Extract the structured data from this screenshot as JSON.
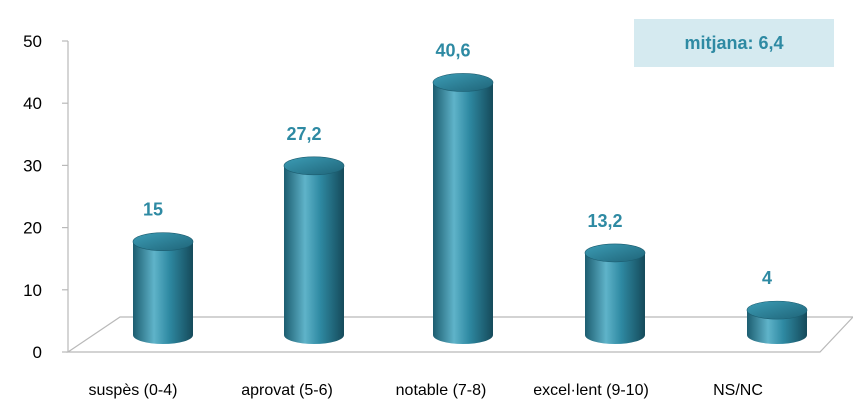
{
  "chart_data": {
    "type": "bar",
    "categories": [
      "suspès (0-4)",
      "aprovat (5-6)",
      "notable (7-8)",
      "excel·lent (9-10)",
      "NS/NC"
    ],
    "values": [
      15,
      27.2,
      40.6,
      13.2,
      4
    ],
    "value_labels": [
      "15",
      "27,2",
      "40,6",
      "13,2",
      "4"
    ],
    "y_ticks": [
      "0",
      "10",
      "20",
      "30",
      "40",
      "50"
    ],
    "ylim": [
      0,
      50
    ],
    "title": "",
    "xlabel": "",
    "ylabel": "",
    "grid": false,
    "bar_style": "3d-cylinder"
  },
  "annotation": {
    "text": "mitjana: 6,4"
  },
  "colors": {
    "bar": "#2f8aa3",
    "bar_dark": "#1c5d70",
    "bar_light": "#5fb3c9",
    "value_label": "#2e8aa3",
    "annotation_bg": "#d5eaf0",
    "annotation_text": "#2e8aa3",
    "floor": "#b9b9b9"
  }
}
